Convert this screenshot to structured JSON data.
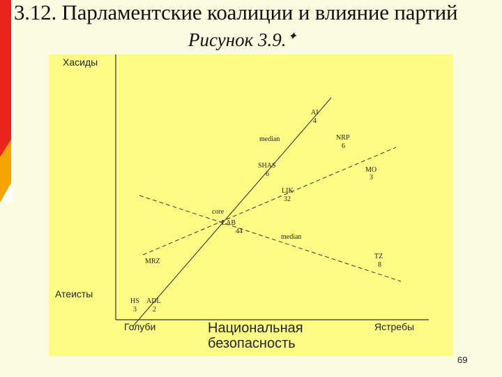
{
  "slide": {
    "title": "3.12. Парламентские коалиции и влияние партий",
    "subtitle": "Рисунок 3.9.",
    "subtitle_mark": "✦",
    "page_number": "69"
  },
  "diagram": {
    "y_axis_top_label": "Хасиды",
    "y_axis_bottom_label": "Атеисты",
    "x_axis_left_label": "Голуби",
    "x_axis_title_line1": "Национальная",
    "x_axis_title_line2": "безопасность",
    "x_axis_right_label": "Ястребы",
    "median_label_upper": "median",
    "median_label_lower": "median",
    "core_label": "core",
    "parties": [
      {
        "name": "AI",
        "seats": "4"
      },
      {
        "name": "NRP",
        "seats": "6"
      },
      {
        "name": "SHAS",
        "seats": "6"
      },
      {
        "name": "MO",
        "seats": "3"
      },
      {
        "name": "LIK",
        "seats": "32"
      },
      {
        "name": "LAB",
        "seats": "44"
      },
      {
        "name": "TZ",
        "seats": "8"
      },
      {
        "name": "MRZ",
        "seats": ""
      },
      {
        "name": "HS",
        "seats": "3"
      },
      {
        "name": "ADL",
        "seats": "2"
      }
    ]
  },
  "colors": {
    "slide_background": "#fbfbe0",
    "figure_background": "#fdfd86",
    "accent_red": "#e8241c",
    "accent_orange": "#f6a400"
  }
}
